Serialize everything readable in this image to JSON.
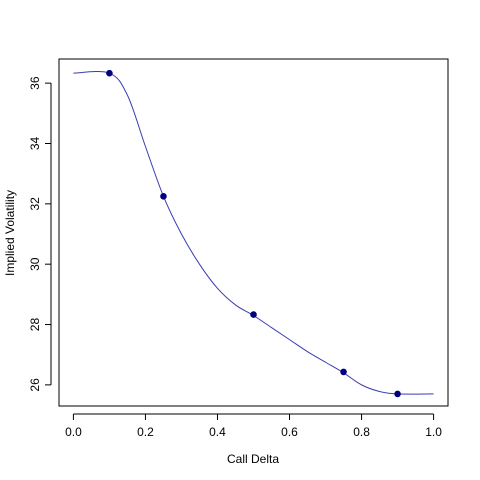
{
  "chart_data": {
    "type": "line",
    "title": "",
    "xlabel": "Call Delta",
    "ylabel": "Implied Volatility",
    "xlim": [
      -0.04,
      1.04
    ],
    "ylim": [
      25.3,
      36.8
    ],
    "x_ticks": [
      0.0,
      0.2,
      0.4,
      0.6,
      0.8,
      1.0
    ],
    "x_tick_labels": [
      "0.0",
      "0.2",
      "0.4",
      "0.6",
      "0.8",
      "1.0"
    ],
    "y_ticks": [
      26,
      28,
      30,
      32,
      34,
      36
    ],
    "y_tick_labels": [
      "26",
      "28",
      "30",
      "32",
      "34",
      "36"
    ],
    "grid": false,
    "legend": "none",
    "series": [
      {
        "kind": "curve",
        "color": "#3b3bb4",
        "x": [
          0.0,
          0.1,
          0.15,
          0.2,
          0.25,
          0.3,
          0.35,
          0.4,
          0.45,
          0.5,
          0.55,
          0.6,
          0.65,
          0.7,
          0.75,
          0.8,
          0.85,
          0.9,
          1.0
        ],
        "y": [
          36.33,
          36.33,
          35.6,
          33.9,
          32.25,
          31.0,
          30.0,
          29.2,
          28.65,
          28.3,
          27.9,
          27.5,
          27.1,
          26.75,
          26.4,
          26.0,
          25.78,
          25.7,
          25.7
        ]
      },
      {
        "kind": "points",
        "color": "#00007f",
        "x": [
          0.1,
          0.25,
          0.5,
          0.75,
          0.9
        ],
        "y": [
          36.33,
          32.25,
          28.33,
          26.43,
          25.7
        ]
      }
    ]
  }
}
